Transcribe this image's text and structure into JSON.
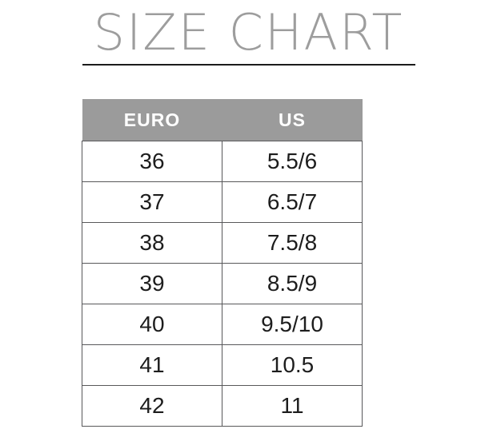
{
  "page": {
    "title": "SIZE CHART",
    "colors": {
      "background": "#ffffff",
      "title_text": "#9d9d9d",
      "title_rule": "#1b1b1b",
      "header_background": "#9b9b9b",
      "header_text": "#ffffff",
      "cell_border": "#58585a",
      "cell_text": "#1d1d1d"
    }
  },
  "chart_data": {
    "type": "table",
    "title": "SIZE CHART",
    "columns": [
      "EURO",
      "US"
    ],
    "rows": [
      [
        "36",
        "5.5/6"
      ],
      [
        "37",
        "6.5/7"
      ],
      [
        "38",
        "7.5/8"
      ],
      [
        "39",
        "8.5/9"
      ],
      [
        "40",
        "9.5/10"
      ],
      [
        "41",
        "10.5"
      ],
      [
        "42",
        "11"
      ]
    ]
  }
}
